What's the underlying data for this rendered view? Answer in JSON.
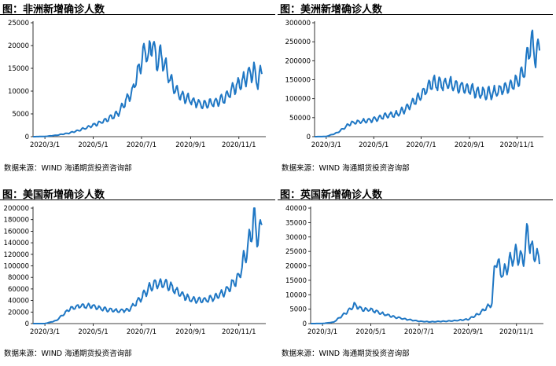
{
  "charts": [
    {
      "title": "图：非洲新增确诊人数",
      "source": "数据来源：WIND   海通期货投资咨询部",
      "ymax": 25000,
      "yticks": [
        "0",
        "5000",
        "10000",
        "15000",
        "20000",
        "25000"
      ],
      "xticks": [
        "2020/3/1",
        "2020/5/1",
        "2020/7/1",
        "2020/9/1",
        "2020/11/1"
      ]
    },
    {
      "title": "图：美洲新增确诊人数",
      "source": "数据来源：WIND   海通期货投资咨询部",
      "ymax": 300000,
      "yticks": [
        "0",
        "50000",
        "100000",
        "150000",
        "200000",
        "250000",
        "300000"
      ],
      "xticks": [
        "2020/3/1",
        "2020/5/1",
        "2020/7/1",
        "2020/9/1",
        "2020/11/1"
      ]
    },
    {
      "title": "图：美国新增确诊人数",
      "source": "数据来源：WIND   海通期货投资咨询部",
      "ymax": 200000,
      "yticks": [
        "0",
        "20000",
        "40000",
        "60000",
        "80000",
        "100000",
        "120000",
        "140000",
        "160000",
        "180000",
        "200000"
      ],
      "xticks": [
        "2020/3/1",
        "2020/5/1",
        "2020/7/1",
        "2020/9/1",
        "2020/11/1"
      ]
    },
    {
      "title": "图：英国新增确诊人数",
      "source": "数据来源：WIND   海通期货投资咨询部",
      "ymax": 40000,
      "yticks": [
        "0",
        "5000",
        "10000",
        "15000",
        "20000",
        "25000",
        "30000",
        "35000",
        "40000"
      ],
      "xticks": [
        "2020/3/1",
        "2020/5/1",
        "2020/7/1",
        "2020/9/1",
        "2020/11/1"
      ]
    }
  ],
  "chart_data": [
    {
      "type": "line",
      "title": "图：非洲新增确诊人数",
      "x": [
        "2020/2/15",
        "2020/3/1",
        "2020/3/15",
        "2020/4/1",
        "2020/4/15",
        "2020/5/1",
        "2020/5/15",
        "2020/6/1",
        "2020/6/10",
        "2020/6/20",
        "2020/7/1",
        "2020/7/5",
        "2020/7/10",
        "2020/7/15",
        "2020/7/20",
        "2020/7/25",
        "2020/8/1",
        "2020/8/10",
        "2020/8/20",
        "2020/9/1",
        "2020/9/15",
        "2020/10/1",
        "2020/10/15",
        "2020/10/25",
        "2020/11/1",
        "2020/11/10",
        "2020/11/20",
        "2020/11/25",
        "2020/11/30"
      ],
      "values": [
        0,
        50,
        300,
        800,
        1500,
        2500,
        3500,
        5000,
        7500,
        10000,
        17000,
        19000,
        17500,
        21000,
        16000,
        18000,
        15000,
        11000,
        9000,
        8000,
        7000,
        7500,
        8500,
        10500,
        11500,
        13000,
        14500,
        12000,
        15000
      ],
      "ylim": [
        0,
        25000
      ],
      "color": "#1f77c4"
    },
    {
      "type": "line",
      "title": "图：美洲新增确诊人数",
      "x": [
        "2020/2/15",
        "2020/3/1",
        "2020/3/15",
        "2020/4/1",
        "2020/4/15",
        "2020/5/1",
        "2020/5/15",
        "2020/6/1",
        "2020/6/15",
        "2020/7/1",
        "2020/7/15",
        "2020/8/1",
        "2020/8/15",
        "2020/9/1",
        "2020/9/15",
        "2020/10/1",
        "2020/10/15",
        "2020/11/1",
        "2020/11/10",
        "2020/11/15",
        "2020/11/20",
        "2020/11/25",
        "2020/11/30"
      ],
      "values": [
        0,
        500,
        10000,
        35000,
        40000,
        45000,
        55000,
        60000,
        80000,
        110000,
        140000,
        140000,
        135000,
        125000,
        115000,
        115000,
        125000,
        145000,
        175000,
        215000,
        255000,
        205000,
        245000
      ],
      "ylim": [
        0,
        300000
      ],
      "color": "#1f77c4"
    },
    {
      "type": "line",
      "title": "图：美国新增确诊人数",
      "x": [
        "2020/2/15",
        "2020/3/1",
        "2020/3/15",
        "2020/4/1",
        "2020/4/15",
        "2020/5/1",
        "2020/5/15",
        "2020/6/1",
        "2020/6/15",
        "2020/7/1",
        "2020/7/15",
        "2020/8/1",
        "2020/8/15",
        "2020/9/1",
        "2020/9/15",
        "2020/10/1",
        "2020/10/15",
        "2020/11/1",
        "2020/11/10",
        "2020/11/15",
        "2020/11/20",
        "2020/11/25",
        "2020/11/30"
      ],
      "values": [
        0,
        0,
        5000,
        25000,
        31000,
        30000,
        25000,
        22000,
        24000,
        45000,
        68000,
        70000,
        55000,
        42000,
        40000,
        45000,
        55000,
        80000,
        125000,
        150000,
        185000,
        145000,
        175000
      ],
      "ylim": [
        0,
        200000
      ],
      "color": "#1f77c4"
    },
    {
      "type": "line",
      "title": "图：英国新增确诊人数",
      "x": [
        "2020/2/15",
        "2020/3/1",
        "2020/3/15",
        "2020/4/1",
        "2020/4/10",
        "2020/4/20",
        "2020/5/1",
        "2020/5/15",
        "2020/6/1",
        "2020/6/15",
        "2020/7/1",
        "2020/7/15",
        "2020/8/1",
        "2020/8/15",
        "2020/9/1",
        "2020/9/15",
        "2020/10/1",
        "2020/10/5",
        "2020/10/15",
        "2020/10/25",
        "2020/11/1",
        "2020/11/10",
        "2020/11/15",
        "2020/11/20",
        "2020/11/30"
      ],
      "values": [
        0,
        30,
        500,
        4000,
        6500,
        5000,
        4800,
        3500,
        2200,
        1500,
        800,
        600,
        800,
        1000,
        1500,
        3500,
        7000,
        22000,
        17000,
        22000,
        24000,
        22000,
        32000,
        25000,
        22000
      ],
      "ylim": [
        0,
        40000
      ],
      "color": "#1f77c4"
    }
  ]
}
